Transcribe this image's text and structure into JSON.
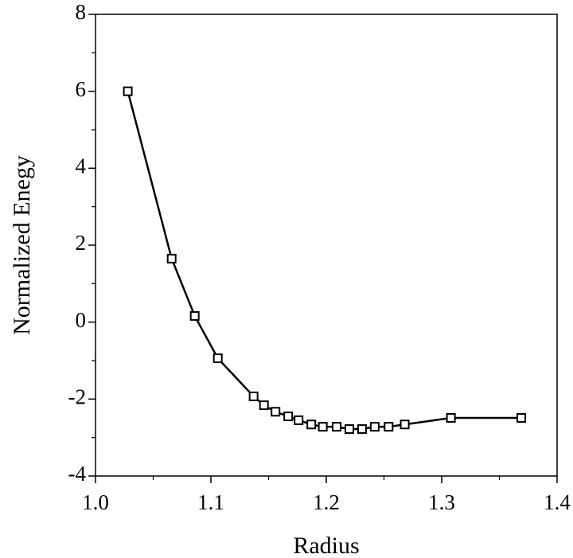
{
  "chart_data": {
    "type": "line",
    "xlabel": "Radius",
    "ylabel": "Normalized Enegy",
    "x": [
      1.028,
      1.066,
      1.086,
      1.106,
      1.137,
      1.146,
      1.156,
      1.167,
      1.176,
      1.187,
      1.197,
      1.209,
      1.22,
      1.231,
      1.242,
      1.254,
      1.268,
      1.308,
      1.369
    ],
    "series": [
      {
        "color": "#000000",
        "values": [
          6.0,
          1.65,
          0.16,
          -0.94,
          -1.93,
          -2.16,
          -2.33,
          -2.45,
          -2.55,
          -2.66,
          -2.72,
          -2.72,
          -2.78,
          -2.78,
          -2.72,
          -2.72,
          -2.66,
          -2.49,
          -2.49
        ]
      }
    ],
    "xlim": [
      1.0,
      1.4
    ],
    "ylim": [
      -4,
      8
    ],
    "xticks": [
      {
        "value": 1,
        "label": "1.0"
      },
      1.1,
      1.2,
      1.3,
      1.4
    ],
    "yticks": [
      -4,
      -2,
      0,
      2,
      4,
      6,
      8
    ],
    "marker": "square"
  }
}
